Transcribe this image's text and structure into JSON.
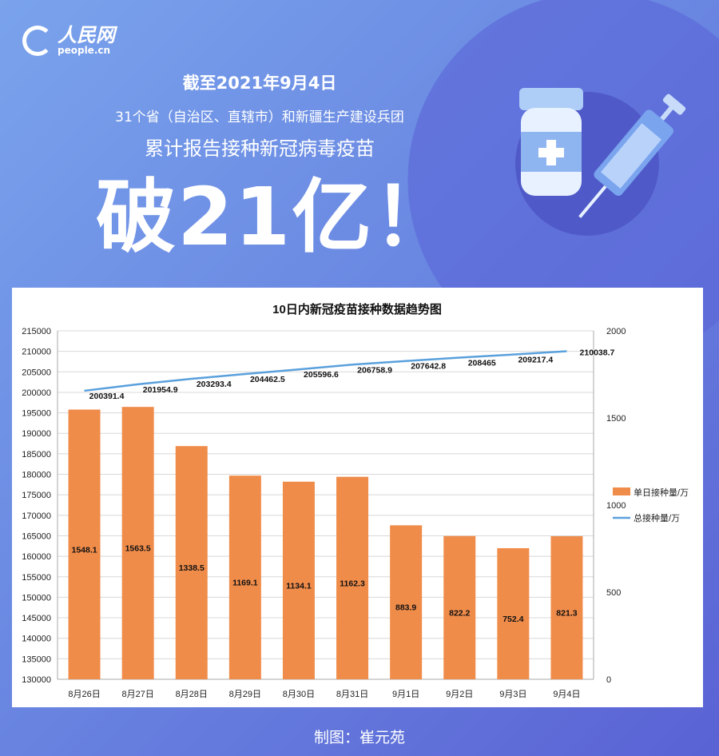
{
  "logo": {
    "cn": "人民网",
    "en": "people.cn"
  },
  "header": {
    "date": "截至2021年9月4日",
    "scope": "31个省（自治区、直辖市）和新疆生产建设兵团",
    "subject": "累计报告接种新冠病毒疫苗",
    "headline": "破21亿！"
  },
  "credit": "制图：崔元苑",
  "colors": {
    "bar": "#f08c4a",
    "line": "#5aa0dc",
    "background": "#6a88e2"
  },
  "chart_data": {
    "type": "bar",
    "title": "10日内新冠疫苗接种数据趋势图",
    "categories": [
      "8月26日",
      "8月27日",
      "8月28日",
      "8月29日",
      "8月30日",
      "8月31日",
      "9月1日",
      "9月2日",
      "9月3日",
      "9月4日"
    ],
    "series": [
      {
        "name": "单日接种量/万",
        "type": "bar",
        "axis": "right",
        "values": [
          1548.1,
          1563.5,
          1338.5,
          1169.1,
          1134.1,
          1162.3,
          883.9,
          822.2,
          752.4,
          821.3
        ],
        "labels": [
          "1548.1",
          "1563.5",
          "1338.5",
          "1169.1",
          "1134.1",
          "1162.3",
          "883.9",
          "822.2",
          "752.4",
          "821.3"
        ]
      },
      {
        "name": "总接种量/万",
        "type": "line",
        "axis": "left",
        "values": [
          200391.4,
          201954.9,
          203293.4,
          204462.5,
          205596.6,
          206758.9,
          207642.8,
          208465,
          209217.4,
          210038.7
        ],
        "labels": [
          "200391.4",
          "201954.9",
          "203293.4",
          "204462.5",
          "205596.6",
          "206758.9",
          "207642.8",
          "208465",
          "209217.4",
          "210038.7"
        ]
      }
    ],
    "left_axis": {
      "min": 130000,
      "max": 215000,
      "step": 5000
    },
    "right_axis": {
      "min": 0,
      "max": 2000,
      "ticks": [
        0,
        500,
        1000,
        1500,
        2000
      ]
    },
    "legend": "right",
    "grid": true
  }
}
